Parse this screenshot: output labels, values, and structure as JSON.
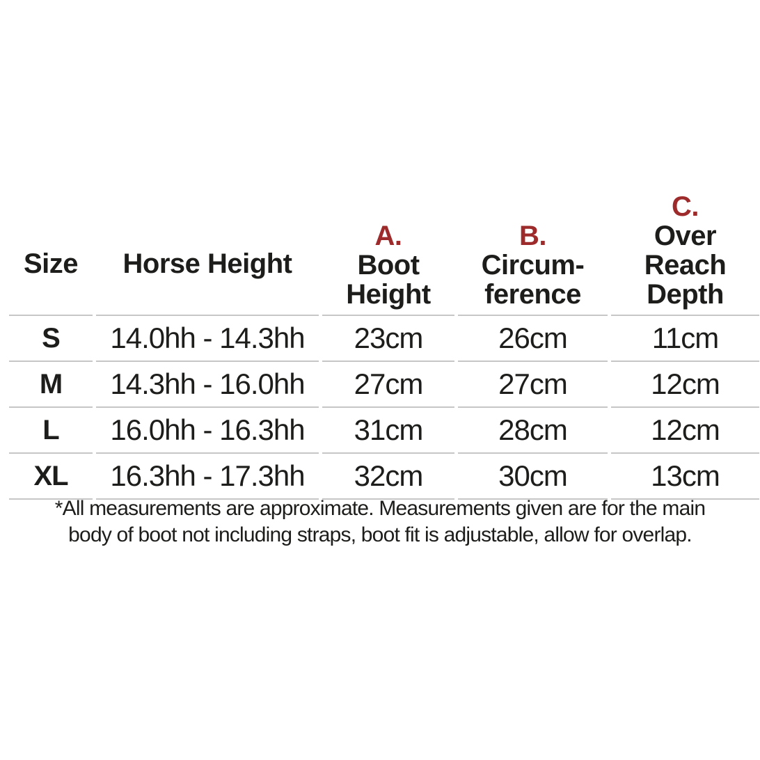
{
  "colors": {
    "accent_red": "#9e2b2b",
    "text": "#1d1d1b",
    "divider": "#c6c6c6"
  },
  "chart_data": {
    "type": "table",
    "title": "Horse boot size chart",
    "columns": [
      {
        "letter": "",
        "line1": "Size",
        "line2": ""
      },
      {
        "letter": "",
        "line1": "Horse Height",
        "line2": ""
      },
      {
        "letter": "A.",
        "line1": "Boot",
        "line2": "Height"
      },
      {
        "letter": "B.",
        "line1": "Circum-",
        "line2": "ference"
      },
      {
        "letter": "C.",
        "line1": "Over Reach",
        "line2": "Depth"
      }
    ],
    "rows": [
      [
        "S",
        "14.0hh - 14.3hh",
        "23cm",
        "26cm",
        "11cm"
      ],
      [
        "M",
        "14.3hh - 16.0hh",
        "27cm",
        "27cm",
        "12cm"
      ],
      [
        "L",
        "16.0hh - 16.3hh",
        "31cm",
        "28cm",
        "12cm"
      ],
      [
        "XL",
        "16.3hh - 17.3hh",
        "32cm",
        "30cm",
        "13cm"
      ]
    ]
  },
  "footnote": {
    "line1": "*All measurements are approximate. Measurements given are for the main",
    "line2": "body of boot not including straps, boot fit is adjustable, allow for overlap."
  }
}
